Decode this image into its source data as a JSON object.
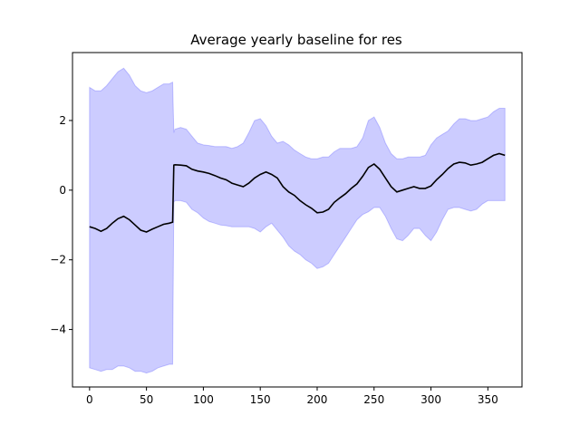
{
  "chart_data": {
    "type": "line",
    "title": "Average yearly baseline for res",
    "xlabel": "",
    "ylabel": "",
    "xlim": [
      -15,
      380
    ],
    "ylim": [
      -5.65,
      3.95
    ],
    "xticks": [
      0,
      50,
      100,
      150,
      200,
      250,
      300,
      350
    ],
    "yticks": [
      -4,
      -2,
      0,
      2
    ],
    "ytick_labels": [
      "−4",
      "−2",
      "0",
      "2"
    ],
    "grid": false,
    "colors": {
      "band": "#0000ff",
      "band_alpha": 0.2,
      "line": "#000000"
    },
    "series": [
      {
        "kind": "line",
        "x": [
          0,
          5,
          10,
          15,
          20,
          25,
          30,
          35,
          40,
          45,
          50,
          55,
          60,
          65,
          70,
          73,
          74,
          75,
          80,
          85,
          90,
          95,
          100,
          105,
          110,
          115,
          120,
          125,
          130,
          135,
          140,
          145,
          150,
          155,
          160,
          165,
          170,
          175,
          180,
          185,
          190,
          195,
          200,
          205,
          210,
          215,
          220,
          225,
          230,
          235,
          240,
          245,
          250,
          255,
          260,
          265,
          270,
          275,
          280,
          285,
          290,
          295,
          300,
          305,
          310,
          315,
          320,
          325,
          330,
          335,
          340,
          345,
          350,
          355,
          360,
          365
        ],
        "y": [
          -1.05,
          -1.1,
          -1.18,
          -1.1,
          -0.95,
          -0.82,
          -0.75,
          -0.85,
          -1.0,
          -1.15,
          -1.2,
          -1.12,
          -1.05,
          -0.98,
          -0.95,
          -0.92,
          0.72,
          0.73,
          0.72,
          0.7,
          0.6,
          0.55,
          0.52,
          0.48,
          0.42,
          0.35,
          0.3,
          0.2,
          0.15,
          0.1,
          0.2,
          0.35,
          0.45,
          0.52,
          0.45,
          0.35,
          0.1,
          -0.05,
          -0.15,
          -0.3,
          -0.42,
          -0.52,
          -0.65,
          -0.63,
          -0.55,
          -0.35,
          -0.22,
          -0.1,
          0.05,
          0.18,
          0.4,
          0.65,
          0.75,
          0.6,
          0.35,
          0.1,
          -0.05,
          0.0,
          0.05,
          0.1,
          0.05,
          0.05,
          0.12,
          0.3,
          0.45,
          0.62,
          0.75,
          0.8,
          0.78,
          0.72,
          0.75,
          0.8,
          0.9,
          1.0,
          1.05,
          1.0
        ]
      },
      {
        "kind": "band",
        "x": [
          0,
          5,
          10,
          15,
          20,
          25,
          30,
          35,
          40,
          45,
          50,
          55,
          60,
          65,
          70,
          73,
          74,
          75,
          80,
          85,
          90,
          95,
          100,
          105,
          110,
          115,
          120,
          125,
          130,
          135,
          140,
          145,
          150,
          155,
          160,
          165,
          170,
          175,
          180,
          185,
          190,
          195,
          200,
          205,
          210,
          215,
          220,
          225,
          230,
          235,
          240,
          245,
          250,
          255,
          260,
          265,
          270,
          275,
          280,
          285,
          290,
          295,
          300,
          305,
          310,
          315,
          320,
          325,
          330,
          335,
          340,
          345,
          350,
          355,
          360,
          365
        ],
        "upper": [
          2.95,
          2.85,
          2.85,
          3.0,
          3.2,
          3.4,
          3.5,
          3.3,
          3.0,
          2.85,
          2.8,
          2.85,
          2.95,
          3.05,
          3.05,
          3.1,
          1.65,
          1.75,
          1.8,
          1.75,
          1.55,
          1.35,
          1.3,
          1.28,
          1.25,
          1.25,
          1.25,
          1.2,
          1.25,
          1.35,
          1.65,
          2.0,
          2.05,
          1.85,
          1.55,
          1.35,
          1.4,
          1.3,
          1.15,
          1.05,
          0.95,
          0.9,
          0.9,
          0.95,
          0.95,
          1.1,
          1.2,
          1.2,
          1.2,
          1.25,
          1.5,
          2.0,
          2.1,
          1.8,
          1.35,
          1.05,
          0.9,
          0.9,
          0.95,
          0.95,
          0.95,
          1.0,
          1.3,
          1.5,
          1.6,
          1.7,
          1.9,
          2.05,
          2.05,
          2.0,
          2.0,
          2.05,
          2.1,
          2.25,
          2.35,
          2.35
        ],
        "lower": [
          -5.1,
          -5.15,
          -5.2,
          -5.15,
          -5.15,
          -5.05,
          -5.05,
          -5.1,
          -5.2,
          -5.2,
          -5.25,
          -5.2,
          -5.1,
          -5.05,
          -5.0,
          -5.0,
          -0.35,
          -0.3,
          -0.3,
          -0.35,
          -0.55,
          -0.65,
          -0.8,
          -0.9,
          -0.95,
          -1.0,
          -1.02,
          -1.05,
          -1.05,
          -1.05,
          -1.05,
          -1.1,
          -1.2,
          -1.05,
          -0.95,
          -1.15,
          -1.35,
          -1.6,
          -1.75,
          -1.85,
          -2.0,
          -2.1,
          -2.25,
          -2.2,
          -2.1,
          -1.85,
          -1.6,
          -1.35,
          -1.1,
          -0.85,
          -0.7,
          -0.62,
          -0.5,
          -0.5,
          -0.75,
          -1.1,
          -1.4,
          -1.45,
          -1.3,
          -1.1,
          -1.1,
          -1.3,
          -1.45,
          -1.2,
          -0.85,
          -0.55,
          -0.5,
          -0.5,
          -0.55,
          -0.6,
          -0.55,
          -0.4,
          -0.3,
          -0.3,
          -0.3,
          -0.3
        ]
      }
    ]
  }
}
